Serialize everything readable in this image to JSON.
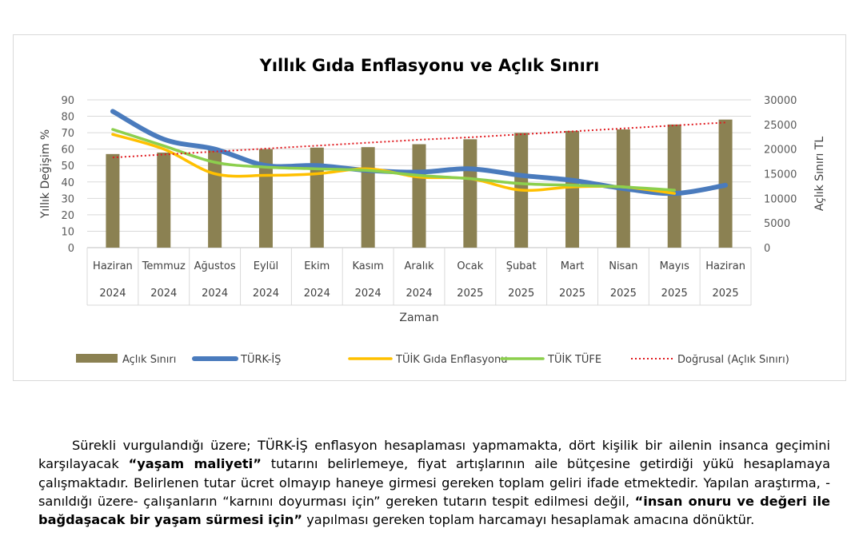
{
  "chart_data": {
    "type": "bar",
    "title": "Yıllık Gıda Enflasyonu ve Açlık Sınırı",
    "xlabel": "Zaman",
    "ylabel_left": "Yıllık Değişim %",
    "ylabel_right": "Açlık Sınırı TL",
    "ylim_left": [
      0,
      90
    ],
    "ylim_right": [
      0,
      30000
    ],
    "yticks_left": [
      "0",
      "10",
      "20",
      "30",
      "40",
      "50",
      "60",
      "70",
      "80",
      "90"
    ],
    "yticks_right": [
      "0",
      "5000",
      "10000",
      "15000",
      "20000",
      "25000",
      "30000"
    ],
    "categories": [
      {
        "month": "Haziran",
        "year": "2024"
      },
      {
        "month": "Temmuz",
        "year": "2024"
      },
      {
        "month": "Ağustos",
        "year": "2024"
      },
      {
        "month": "Eylül",
        "year": "2024"
      },
      {
        "month": "Ekim",
        "year": "2024"
      },
      {
        "month": "Kasım",
        "year": "2024"
      },
      {
        "month": "Aralık",
        "year": "2024"
      },
      {
        "month": "Ocak",
        "year": "2025"
      },
      {
        "month": "Şubat",
        "year": "2025"
      },
      {
        "month": "Mart",
        "year": "2025"
      },
      {
        "month": "Nisan",
        "year": "2025"
      },
      {
        "month": "Mayıs",
        "year": "2025"
      },
      {
        "month": "Haziran",
        "year": "2025"
      }
    ],
    "series": [
      {
        "name": "Açlık Sınırı",
        "kind": "bar",
        "axis": "right",
        "color": "#8b8152",
        "values": [
          19000,
          19300,
          19900,
          20000,
          20300,
          20400,
          21000,
          22000,
          23300,
          23700,
          24000,
          25000,
          26000
        ]
      },
      {
        "name": "TÜRK-İŞ",
        "kind": "line",
        "axis": "left",
        "color": "#4a7bbd",
        "values": [
          83,
          66,
          60,
          50,
          50,
          47,
          46,
          48,
          44,
          41,
          36,
          33,
          38
        ]
      },
      {
        "name": "TÜİK Gıda Enflasyonu",
        "kind": "line",
        "axis": "left",
        "color": "#ffc000",
        "values": [
          69,
          60,
          45,
          44,
          45,
          48,
          43,
          42,
          35,
          37,
          37,
          33,
          null
        ]
      },
      {
        "name": "TÜİK TÜFE",
        "kind": "line",
        "axis": "left",
        "color": "#8ccf4d",
        "values": [
          72,
          62,
          52,
          49,
          48,
          47,
          44,
          42,
          39,
          38,
          37,
          35,
          null
        ]
      },
      {
        "name": "Doğrusal (Açlık Sınırı)",
        "kind": "trend",
        "axis": "right",
        "color": "#e0191e",
        "values": [
          18300,
          18900,
          19500,
          20100,
          20700,
          21300,
          21900,
          22400,
          23000,
          23600,
          24200,
          24800,
          25400
        ]
      }
    ],
    "legend_position": "bottom",
    "grid": true
  },
  "text": {
    "p1": "Sürekli vurgulandığı üzere; TÜRK-İŞ enflasyon hesaplaması yapmamakta, dört kişilik bir ailenin insanca geçimini karşılayacak ",
    "b1": "“yaşam maliyeti”",
    "p2": " tutarını belirlemeye, fiyat artışlarının aile bütçesine getirdiği yükü hesaplamaya çalışmaktadır. Belirlenen tutar ücret olmayıp haneye girmesi gereken toplam geliri ifade etmektedir. Yapılan araştırma, -sanıldığı üzere- çalışanların “karnını doyurması için” gereken tutarın tespit edilmesi değil, ",
    "b2": "“insan onuru ve değeri ile bağdaşacak bir yaşam sürmesi için”",
    "p3": " yapılması gereken toplam harcamayı hesaplamak amacına dönüktür."
  }
}
